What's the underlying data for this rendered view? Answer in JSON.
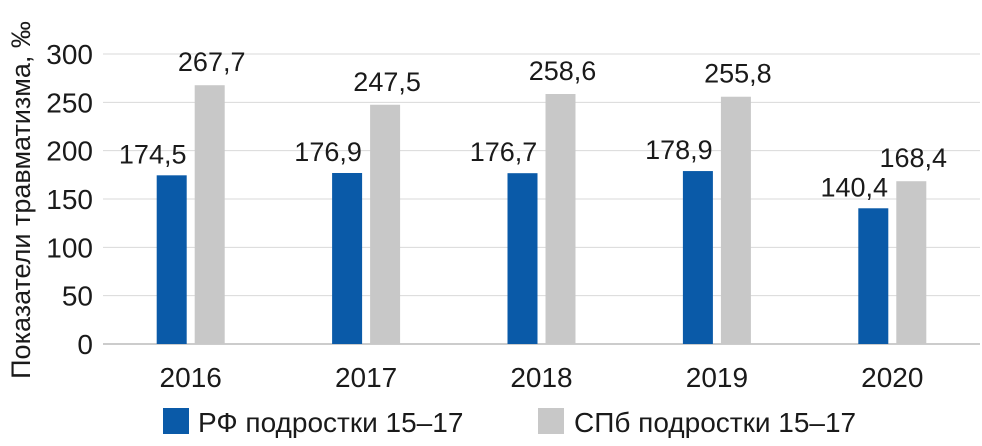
{
  "chart_data": {
    "type": "bar",
    "title": "",
    "xlabel": "",
    "ylabel": "Показатели травматизма, ‰",
    "categories": [
      "2016",
      "2017",
      "2018",
      "2019",
      "2020"
    ],
    "series": [
      {
        "name": "РФ подростки 15–17",
        "values": [
          174.5,
          176.9,
          176.7,
          178.9,
          140.4
        ],
        "labels": [
          "174,5",
          "176,9",
          "176,7",
          "178,9",
          "140,4"
        ],
        "color": "#0a5aa8"
      },
      {
        "name": "СПб подростки 15–17",
        "values": [
          267.7,
          247.5,
          258.6,
          255.8,
          168.4
        ],
        "labels": [
          "267,7",
          "247,5",
          "258,6",
          "255,8",
          "168,4"
        ],
        "color": "#c8c8c8"
      }
    ],
    "yticks": [
      0,
      50,
      100,
      150,
      200,
      250,
      300
    ],
    "ylim": [
      0,
      300
    ],
    "grid": true,
    "gridColor": "#d9d9d9",
    "legend": "bottom"
  }
}
